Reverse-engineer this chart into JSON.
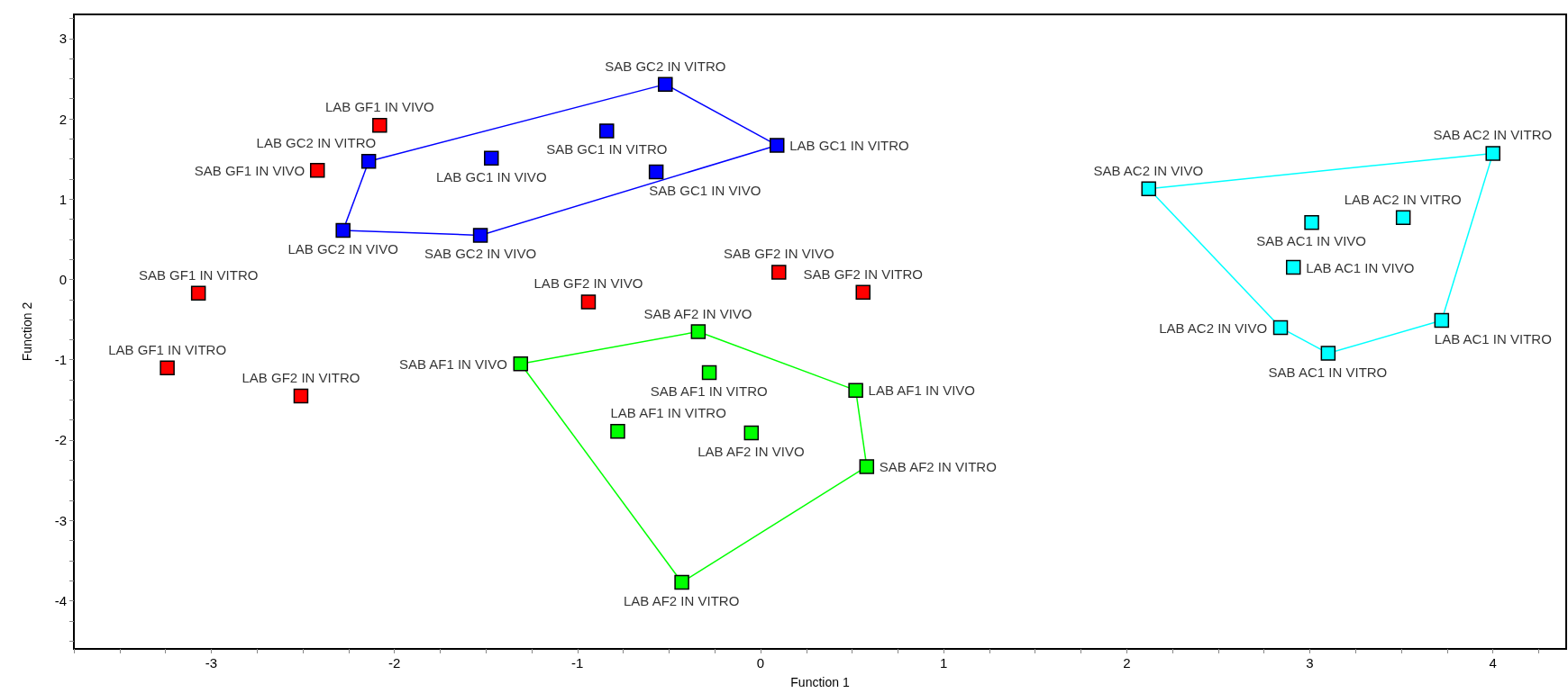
{
  "chart_data": {
    "type": "scatter",
    "xlabel": "Function 1",
    "ylabel": "Function 2",
    "marker": "square",
    "grid": false,
    "xlim": [
      -3.75,
      4.4
    ],
    "ylim": [
      -4.6,
      3.3
    ],
    "xticks": [
      {
        "value": -3.75,
        "label": null
      },
      {
        "value": -3.5,
        "label": null
      },
      {
        "value": -3.25,
        "label": null
      },
      -3,
      {
        "value": -2.75,
        "label": null
      },
      {
        "value": -2.5,
        "label": null
      },
      {
        "value": -2.25,
        "label": null
      },
      -2,
      {
        "value": -1.75,
        "label": null
      },
      {
        "value": -1.5,
        "label": null
      },
      {
        "value": -1.25,
        "label": null
      },
      -1,
      {
        "value": -0.75,
        "label": null
      },
      {
        "value": -0.5,
        "label": null
      },
      {
        "value": -0.25,
        "label": null
      },
      0,
      {
        "value": 0.25,
        "label": null
      },
      {
        "value": 0.5,
        "label": null
      },
      {
        "value": 0.75,
        "label": null
      },
      1,
      {
        "value": 1.25,
        "label": null
      },
      {
        "value": 1.5,
        "label": null
      },
      {
        "value": 1.75,
        "label": null
      },
      2,
      {
        "value": 2.25,
        "label": null
      },
      {
        "value": 2.5,
        "label": null
      },
      {
        "value": 2.75,
        "label": null
      },
      3,
      {
        "value": 3.25,
        "label": null
      },
      {
        "value": 3.5,
        "label": null
      },
      {
        "value": 3.75,
        "label": null
      },
      4,
      {
        "value": 4.25,
        "label": null
      }
    ],
    "yticks": [
      {
        "value": -4.5,
        "label": null
      },
      {
        "value": -4.25,
        "label": null
      },
      -4,
      {
        "value": -3.75,
        "label": null
      },
      {
        "value": -3.5,
        "label": null
      },
      {
        "value": -3.25,
        "label": null
      },
      -3,
      {
        "value": -2.75,
        "label": null
      },
      {
        "value": -2.5,
        "label": null
      },
      {
        "value": -2.25,
        "label": null
      },
      -2,
      {
        "value": -1.75,
        "label": null
      },
      {
        "value": -1.5,
        "label": null
      },
      {
        "value": -1.25,
        "label": null
      },
      -1,
      {
        "value": -0.75,
        "label": null
      },
      {
        "value": -0.5,
        "label": null
      },
      {
        "value": -0.25,
        "label": null
      },
      0,
      {
        "value": 0.25,
        "label": null
      },
      {
        "value": 0.5,
        "label": null
      },
      {
        "value": 0.75,
        "label": null
      },
      1,
      {
        "value": 1.25,
        "label": null
      },
      {
        "value": 1.5,
        "label": null
      },
      {
        "value": 1.75,
        "label": null
      },
      2,
      {
        "value": 2.25,
        "label": null
      },
      {
        "value": 2.5,
        "label": null
      },
      {
        "value": 2.75,
        "label": null
      },
      3,
      {
        "value": 3.25,
        "label": null
      }
    ],
    "series": [
      {
        "type": "line",
        "marker": "none",
        "color": "#0000ff",
        "x": [
          -2.14,
          -0.52
        ],
        "values": [
          1.47,
          2.43
        ]
      },
      {
        "type": "line",
        "marker": "none",
        "color": "#0000ff",
        "x": [
          -0.52,
          0.09
        ],
        "values": [
          2.43,
          1.67
        ]
      },
      {
        "type": "line",
        "marker": "none",
        "color": "#0000ff",
        "x": [
          -1.53,
          0.09
        ],
        "values": [
          0.55,
          1.67
        ]
      },
      {
        "type": "line",
        "marker": "none",
        "color": "#0000ff",
        "x": [
          -2.28,
          -1.53
        ],
        "values": [
          0.61,
          0.55
        ]
      },
      {
        "type": "line",
        "marker": "none",
        "color": "#0000ff",
        "x": [
          -2.28,
          -2.14
        ],
        "values": [
          0.61,
          1.47
        ]
      },
      {
        "type": "line",
        "marker": "none",
        "color": "#00ff00",
        "x": [
          -1.31,
          -0.34
        ],
        "values": [
          -1.05,
          -0.65
        ]
      },
      {
        "type": "line",
        "marker": "none",
        "color": "#00ff00",
        "x": [
          -0.34,
          0.52
        ],
        "values": [
          -0.65,
          -1.38
        ]
      },
      {
        "type": "line",
        "marker": "none",
        "color": "#00ff00",
        "x": [
          0.52,
          0.58
        ],
        "values": [
          -1.38,
          -2.33
        ]
      },
      {
        "type": "line",
        "marker": "none",
        "color": "#00ff00",
        "x": [
          -0.43,
          0.58
        ],
        "values": [
          -3.77,
          -2.33
        ]
      },
      {
        "type": "line",
        "marker": "none",
        "color": "#00ff00",
        "x": [
          -1.31,
          -0.43
        ],
        "values": [
          -1.05,
          -3.77
        ]
      },
      {
        "type": "line",
        "marker": "none",
        "color": "#00ffff",
        "x": [
          2.12,
          4.0
        ],
        "values": [
          1.13,
          1.57
        ]
      },
      {
        "type": "line",
        "marker": "none",
        "color": "#00ffff",
        "x": [
          3.72,
          4.0
        ],
        "values": [
          -0.51,
          1.57
        ]
      },
      {
        "type": "line",
        "marker": "none",
        "color": "#00ffff",
        "x": [
          3.1,
          3.72
        ],
        "values": [
          -0.92,
          -0.51
        ]
      },
      {
        "type": "line",
        "marker": "none",
        "color": "#00ffff",
        "x": [
          2.84,
          3.1
        ],
        "values": [
          -0.6,
          -0.92
        ]
      },
      {
        "type": "line",
        "marker": "none",
        "color": "#00ffff",
        "x": [
          2.12,
          2.84
        ],
        "values": [
          1.13,
          -0.6
        ]
      },
      {
        "color": "#ff0000",
        "x": [
          -2.08,
          -2.42,
          -3.07,
          -3.24,
          -2.51,
          -0.94,
          0.1,
          0.56
        ],
        "values": [
          1.92,
          1.36,
          -0.17,
          -1.1,
          -1.45,
          -0.28,
          0.09,
          -0.16
        ]
      },
      {
        "color": "#0000ff",
        "x": [
          -0.52,
          0.09,
          -0.84,
          -1.47,
          -0.57,
          -2.14,
          -2.28,
          -1.53
        ],
        "values": [
          2.43,
          1.67,
          1.85,
          1.51,
          1.34,
          1.47,
          0.61,
          0.55
        ]
      },
      {
        "color": "#00ff00",
        "x": [
          -0.34,
          -1.31,
          -0.28,
          0.52,
          -0.78,
          -0.05,
          0.58,
          -0.43
        ],
        "values": [
          -0.65,
          -1.05,
          -1.16,
          -1.38,
          -1.89,
          -1.91,
          -2.33,
          -3.77
        ]
      },
      {
        "color": "#00ffff",
        "x": [
          2.12,
          4.0,
          3.51,
          3.01,
          2.91,
          3.72,
          2.84,
          3.1
        ],
        "values": [
          1.13,
          1.57,
          0.77,
          0.71,
          0.15,
          -0.51,
          -0.6,
          -0.92
        ]
      }
    ],
    "annotations": [
      {
        "text": "LAB GF1 IN VIVO",
        "x": -2.08,
        "y": 1.92
      },
      {
        "text": "SAB GF1 IN VIVO",
        "x": -2.42,
        "y": 1.36
      },
      {
        "text": "SAB GF1 IN VITRO",
        "x": -3.07,
        "y": -0.17
      },
      {
        "text": "LAB GF1 IN VITRO",
        "x": -3.24,
        "y": -1.1
      },
      {
        "text": "LAB GF2 IN VITRO",
        "x": -2.51,
        "y": -1.45
      },
      {
        "text": "LAB GF2 IN VIVO",
        "x": -0.94,
        "y": -0.28
      },
      {
        "text": "SAB GF2 IN VIVO",
        "x": 0.1,
        "y": 0.09
      },
      {
        "text": "SAB GF2 IN VITRO",
        "x": 0.56,
        "y": -0.16
      },
      {
        "text": "SAB GC2 IN VITRO",
        "x": -0.52,
        "y": 2.43
      },
      {
        "text": "LAB GC1 IN VITRO",
        "x": 0.09,
        "y": 1.67
      },
      {
        "text": "SAB GC1 IN VITRO",
        "x": -0.84,
        "y": 1.85
      },
      {
        "text": "LAB GC1 IN VIVO",
        "x": -1.47,
        "y": 1.51
      },
      {
        "text": "SAB GC1 IN VIVO",
        "x": -0.57,
        "y": 1.34
      },
      {
        "text": "LAB GC2 IN VITRO",
        "x": -2.14,
        "y": 1.47
      },
      {
        "text": "LAB GC2 IN VIVO",
        "x": -2.28,
        "y": 0.61
      },
      {
        "text": "SAB GC2 IN VIVO",
        "x": -1.53,
        "y": 0.55
      },
      {
        "text": "SAB AF2 IN VIVO",
        "x": -0.34,
        "y": -0.65
      },
      {
        "text": "SAB AF1 IN VIVO",
        "x": -1.31,
        "y": -1.05
      },
      {
        "text": "SAB AF1 IN VITRO",
        "x": -0.28,
        "y": -1.16
      },
      {
        "text": "LAB AF1 IN VIVO",
        "x": 0.52,
        "y": -1.38
      },
      {
        "text": "LAB AF1 IN VITRO",
        "x": -0.78,
        "y": -1.89
      },
      {
        "text": "LAB AF2 IN VIVO",
        "x": -0.05,
        "y": -1.91
      },
      {
        "text": "SAB AF2 IN VITRO",
        "x": 0.58,
        "y": -2.33
      },
      {
        "text": "LAB AF2 IN VITRO",
        "x": -0.43,
        "y": -3.77
      },
      {
        "text": "SAB AC2 IN VIVO",
        "x": 2.12,
        "y": 1.13
      },
      {
        "text": "SAB AC2 IN VITRO",
        "x": 4.0,
        "y": 1.57
      },
      {
        "text": "LAB AC2 IN VITRO",
        "x": 3.51,
        "y": 0.77
      },
      {
        "text": "SAB AC1 IN VIVO",
        "x": 3.01,
        "y": 0.71
      },
      {
        "text": "LAB AC1 IN VIVO",
        "x": 2.91,
        "y": 0.15
      },
      {
        "text": "LAB AC1 IN VITRO",
        "x": 3.72,
        "y": -0.51
      },
      {
        "text": "LAB AC2 IN VIVO",
        "x": 2.84,
        "y": -0.6
      },
      {
        "text": "SAB AC1 IN VITRO",
        "x": 3.1,
        "y": -0.92
      }
    ]
  }
}
